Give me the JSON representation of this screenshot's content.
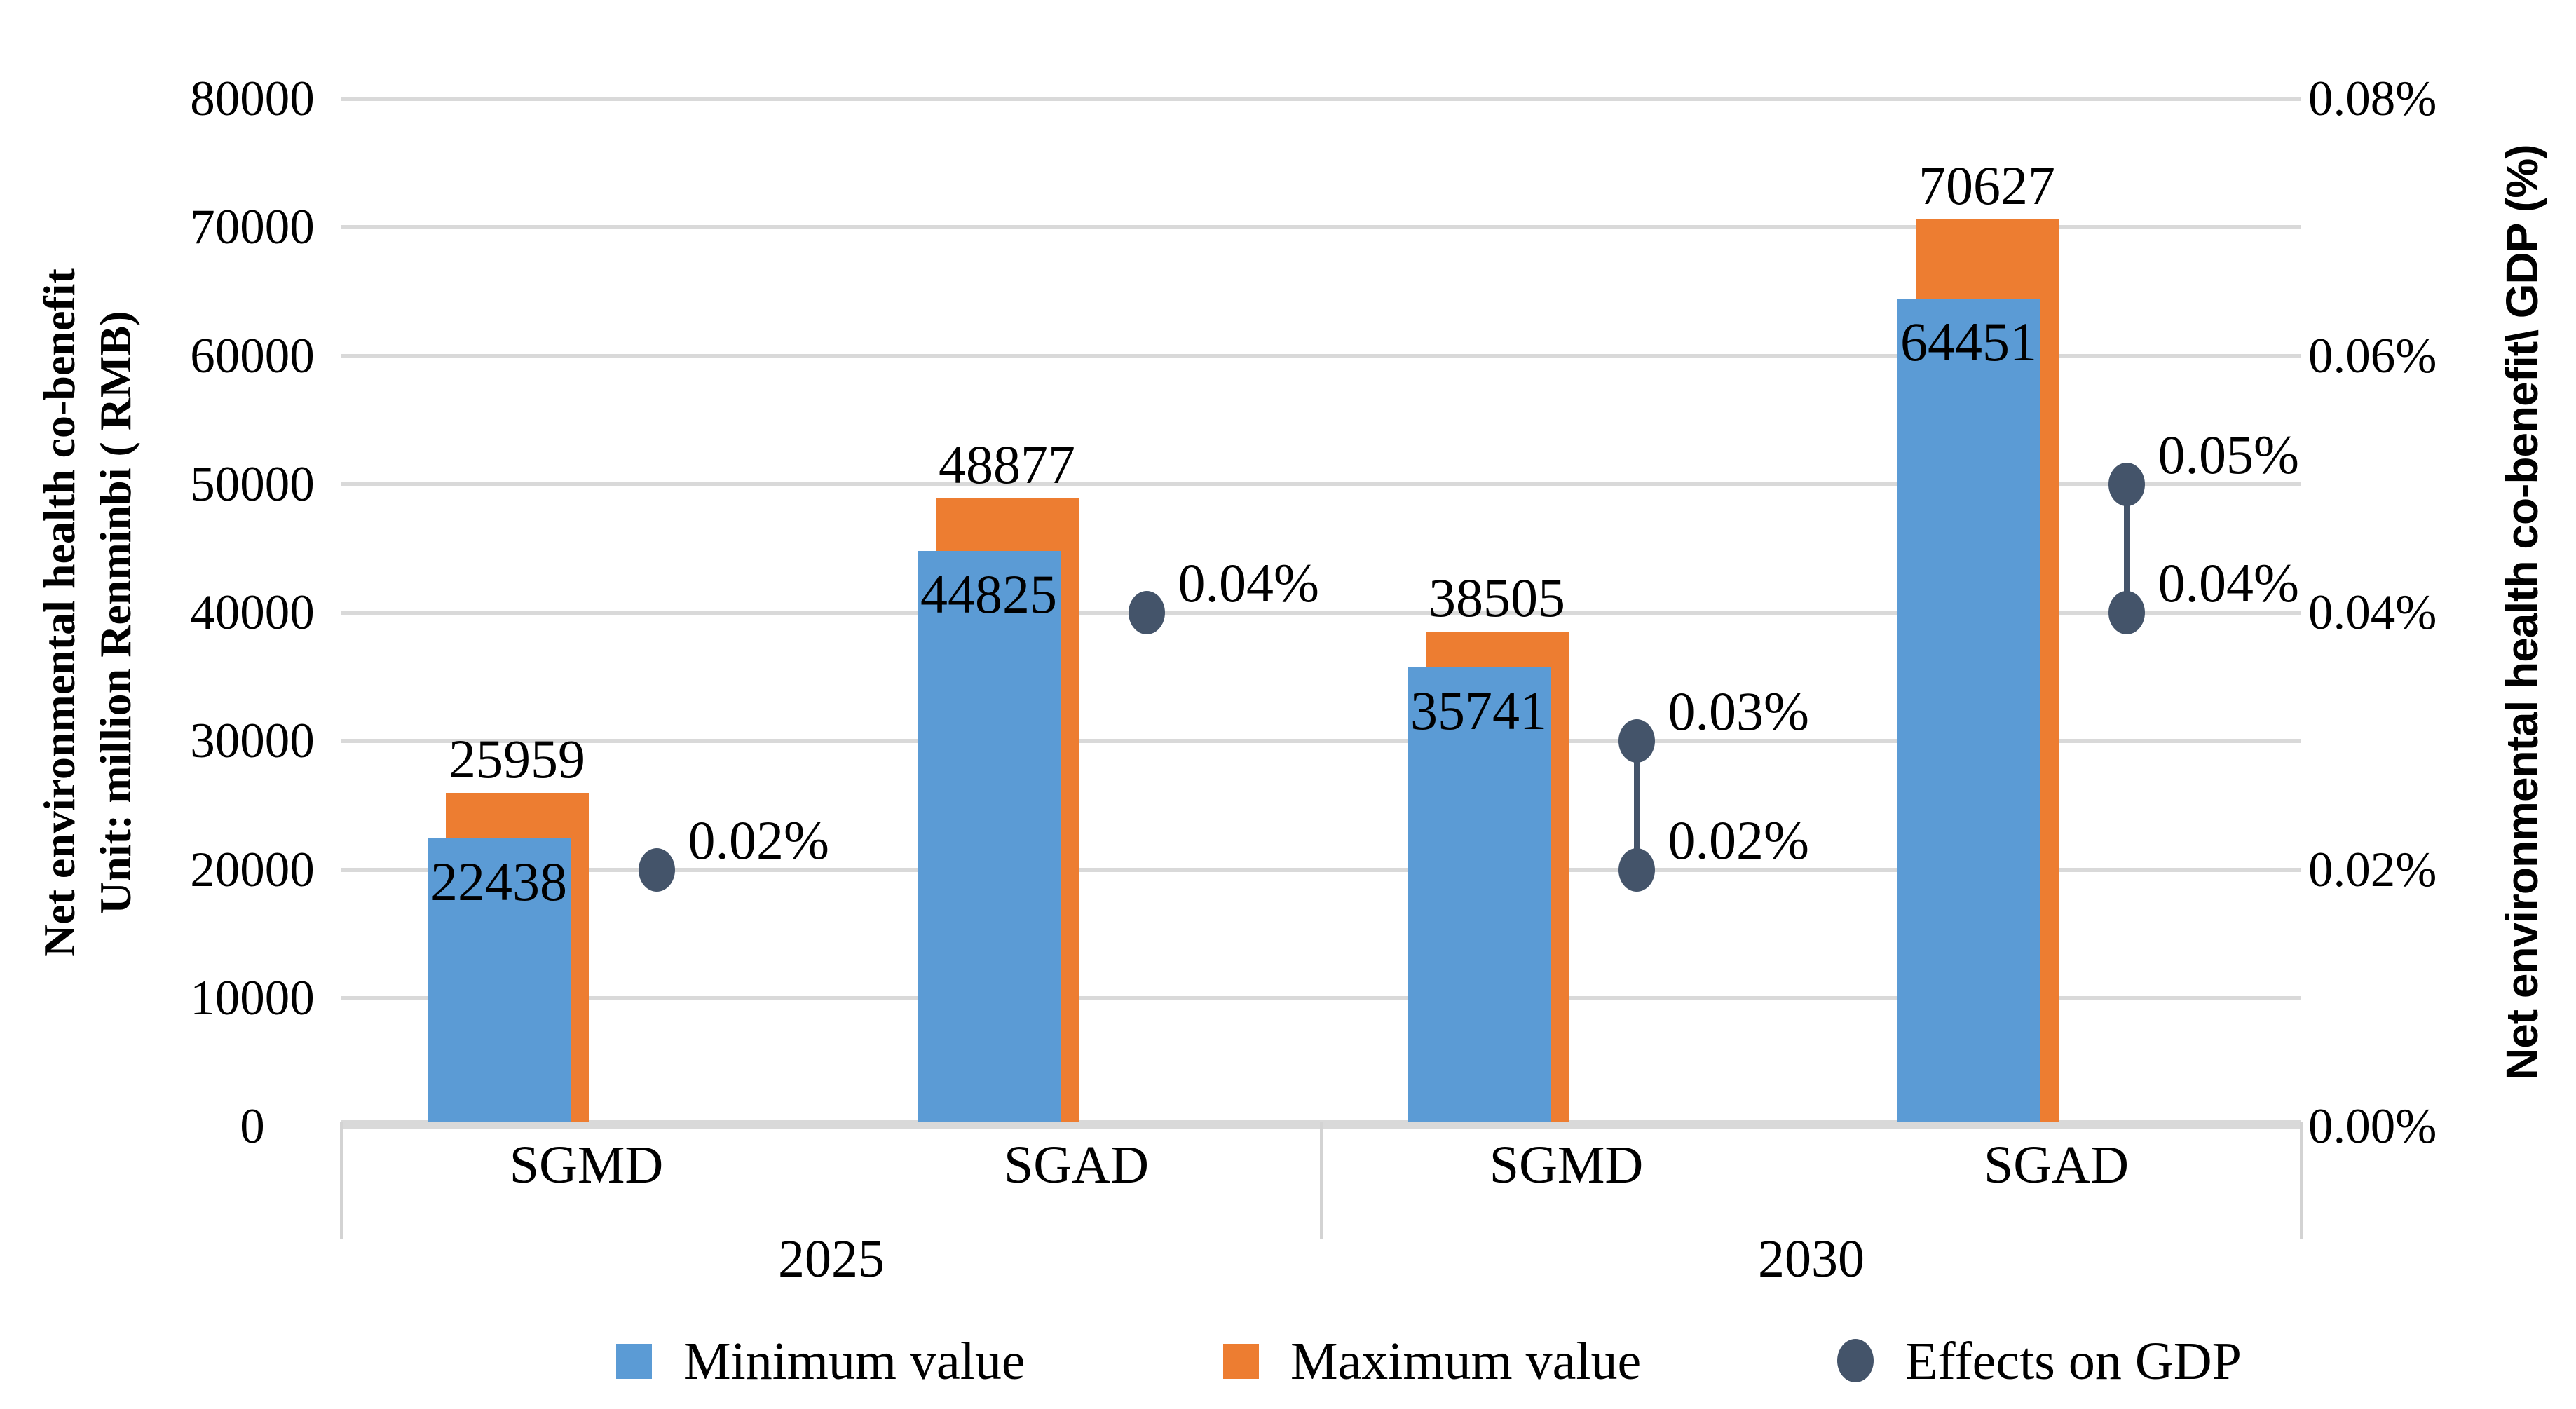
{
  "left_axis": {
    "title_line1": "Net environmental health co-benefit",
    "title_line2": "Unit: million Renminbi ( RMB)",
    "tick_labels": [
      "80000",
      "70000",
      "60000",
      "50000",
      "40000",
      "30000",
      "20000",
      "10000",
      "0"
    ]
  },
  "right_axis": {
    "title": "Net environmental health co-benefit\\ GDP (%)",
    "tick_labels": [
      "0.08%",
      "0.06%",
      "0.04%",
      "0.02%",
      "0.00%"
    ]
  },
  "x_axis": {
    "categories": [
      "SGMD",
      "SGAD",
      "SGMD",
      "SGAD"
    ],
    "year_groups": [
      {
        "label": "2025",
        "groups": [
          0,
          1
        ]
      },
      {
        "label": "2030",
        "groups": [
          2,
          3
        ]
      }
    ]
  },
  "legend": {
    "items": [
      {
        "label": "Minimum value",
        "marker": "square",
        "color": "#5B9BD5"
      },
      {
        "label": "Maximum value",
        "marker": "square",
        "color": "#ED7D31"
      },
      {
        "label": "Effects on GDP",
        "marker": "circle",
        "color": "#44546A"
      }
    ]
  },
  "chart_data": {
    "type": "bar",
    "categories": [
      "2025 SGMD",
      "2025 SGAD",
      "2030 SGMD",
      "2030 SGAD"
    ],
    "series": [
      {
        "name": "Minimum value",
        "type": "bar",
        "color": "#5B9BD5",
        "values": [
          22438,
          44825,
          35741,
          64451
        ]
      },
      {
        "name": "Maximum value",
        "type": "bar",
        "color": "#ED7D31",
        "values": [
          25959,
          48877,
          38505,
          70627
        ]
      },
      {
        "name": "Effects on GDP",
        "type": "scatter",
        "color": "#44546A",
        "values_percent": [
          [
            0.02
          ],
          [
            0.04
          ],
          [
            0.02,
            0.03
          ],
          [
            0.04,
            0.05
          ]
        ],
        "point_labels": [
          [
            "0.02%"
          ],
          [
            "0.04%"
          ],
          [
            "0.02%",
            "0.03%"
          ],
          [
            "0.04%",
            "0.05%"
          ]
        ]
      }
    ],
    "left_ylim": [
      0,
      80000
    ],
    "left_tick_step": 10000,
    "right_ylim_percent": [
      0,
      0.08
    ],
    "right_tick_step_percent": 0.02,
    "left_axis_title": "Net environmental health co-benefit Unit: million Renminbi ( RMB)",
    "right_axis_title": "Net environmental health co-benefit\\ GDP (%)",
    "grid": true,
    "legend_position": "bottom",
    "grid_color": "#D9D9D9",
    "text_color": "#000000"
  }
}
